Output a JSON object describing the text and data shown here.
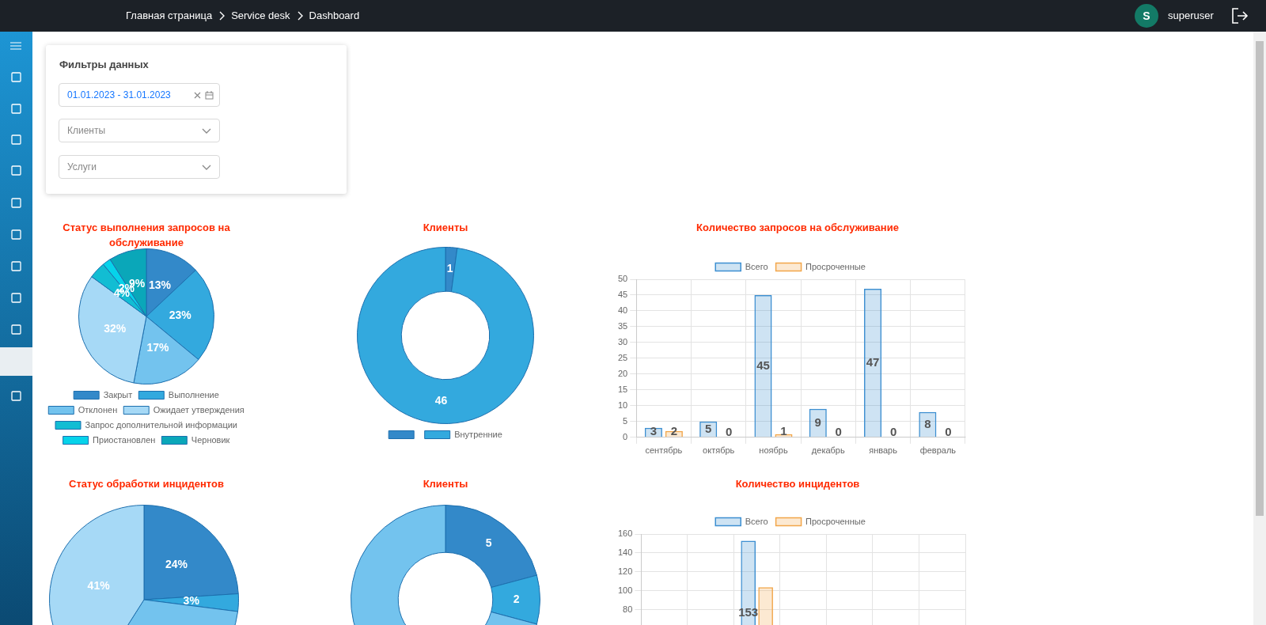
{
  "chart_data": [
    {
      "type": "other",
      "annotations": [
        "Главная страница",
        "Service desk",
        "Dashboard",
        "S",
        "superuser"
      ]
    },
    {
      "type": "other",
      "title": "Фильтры данных",
      "annotations": [
        "01.01.2023 - 31.01.2023",
        "Клиенты",
        "Услуги"
      ]
    },
    {
      "type": "pie",
      "title": "Статус выполнения запросов на обслуживание",
      "categories": [
        "Закрыт",
        "Выполнение",
        "Отклонен",
        "Ожидает утверждения",
        "Запрос дополнительной информации",
        "Приостановлен",
        "Черновик"
      ],
      "values": [
        13,
        23,
        17,
        32,
        4,
        2,
        9
      ],
      "value_labels": [
        "13%",
        "23%",
        "17%",
        "32%",
        "4%",
        "2%",
        "9%"
      ],
      "colors": [
        "#3389c9",
        "#33a9de",
        "#73c3ee",
        "#a6d9f6",
        "#12bdd3",
        "#06d3ea",
        "#0aa7b9"
      ],
      "legend": "bottom"
    },
    {
      "type": "donut",
      "title": "Клиенты",
      "categories": [
        null,
        "Внутренние"
      ],
      "values": [
        1,
        46
      ],
      "colors": [
        "#3389c9",
        "#33a9de"
      ],
      "data_labels": true,
      "legend": "bottom"
    },
    {
      "type": "bar",
      "title": "Количество запросов на обслуживание",
      "categories": [
        "сентябрь",
        "октябрь",
        "ноябрь",
        "декабрь",
        "январь",
        "февраль"
      ],
      "series": [
        {
          "name": "Всего",
          "color": "#3d8fd1",
          "values": [
            3,
            5,
            45,
            9,
            47,
            8
          ]
        },
        {
          "name": "Просроченные",
          "color": "#f2a64a",
          "values": [
            2,
            0,
            1,
            0,
            0,
            0
          ]
        }
      ],
      "ylim": [
        0,
        50
      ],
      "yticks": [
        0,
        5,
        10,
        15,
        20,
        25,
        30,
        35,
        40,
        45,
        50
      ],
      "grid": true,
      "legend": "top",
      "data_labels": true
    },
    {
      "type": "pie",
      "title": "Статус обработки инцидентов",
      "categories": [
        null,
        null,
        null,
        null
      ],
      "values": [
        24,
        3,
        32,
        41
      ],
      "value_labels": [
        "24%",
        "3%",
        null,
        "41%"
      ],
      "colors": [
        "#3389c9",
        "#33a9de",
        "#73c3ee",
        "#a6d9f6"
      ]
    },
    {
      "type": "donut",
      "title": "Клиенты",
      "categories": [
        null,
        null,
        null
      ],
      "values": [
        5,
        2,
        17
      ],
      "value_labels": [
        "5",
        "2",
        null
      ],
      "colors": [
        "#3389c9",
        "#33a9de",
        "#73c3ee"
      ]
    },
    {
      "type": "bar",
      "title": "Количество инцидентов",
      "categories": [
        null,
        null,
        null,
        null,
        null,
        null,
        null
      ],
      "series": [
        {
          "name": "Всего",
          "color": "#3d8fd1",
          "values": [
            null,
            null,
            153,
            null,
            null,
            null,
            null
          ],
          "value_labels": [
            null,
            null,
            "153",
            null,
            null,
            null,
            null
          ]
        },
        {
          "name": "Просроченные",
          "color": "#f2a64a",
          "values": [
            null,
            null,
            104,
            null,
            null,
            null,
            null
          ],
          "value_labels": [
            null,
            null,
            null,
            null,
            null,
            null,
            null
          ]
        }
      ],
      "ylim": [
        0,
        160
      ],
      "yticks": [
        80,
        100,
        120,
        140,
        160
      ],
      "grid": true,
      "legend": "top"
    }
  ]
}
